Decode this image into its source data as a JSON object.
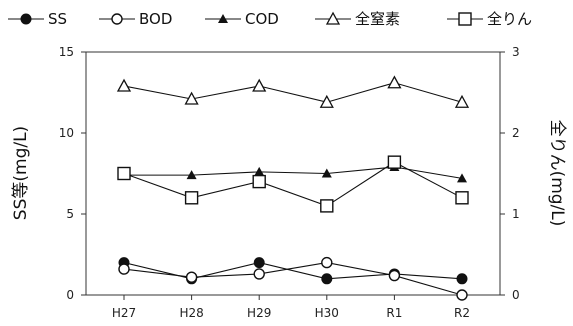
{
  "chart_data": {
    "type": "line",
    "categories": [
      "H27",
      "H28",
      "H29",
      "H30",
      "R1",
      "R2"
    ],
    "y_left": {
      "label": "SS等(mg/L)",
      "ylim": [
        0,
        15
      ],
      "ticks": [
        "0",
        "5",
        "10",
        "15"
      ]
    },
    "y_right": {
      "label": "全りん(mg/L)",
      "ylim": [
        0,
        3
      ],
      "ticks": [
        "0",
        "1",
        "2",
        "3"
      ]
    },
    "grid": false,
    "legend_position": "top",
    "series": [
      {
        "name": "SS",
        "axis": "left",
        "marker": "filled-circle",
        "values": [
          2.0,
          1.0,
          2.0,
          1.0,
          1.3,
          1.0
        ]
      },
      {
        "name": "BOD",
        "axis": "left",
        "marker": "open-circle",
        "values": [
          1.6,
          1.1,
          1.3,
          2.0,
          1.2,
          0.0
        ]
      },
      {
        "name": "COD",
        "axis": "left",
        "marker": "filled-triangle",
        "values": [
          7.4,
          7.4,
          7.6,
          7.5,
          7.9,
          7.2
        ]
      },
      {
        "name": "全窒素",
        "axis": "left",
        "marker": "open-triangle",
        "values": [
          12.9,
          12.1,
          12.9,
          11.9,
          13.1,
          11.9
        ]
      },
      {
        "name": "全りん",
        "axis": "right",
        "marker": "open-square",
        "values": [
          1.5,
          1.2,
          1.4,
          1.1,
          1.64,
          1.2
        ]
      }
    ]
  }
}
